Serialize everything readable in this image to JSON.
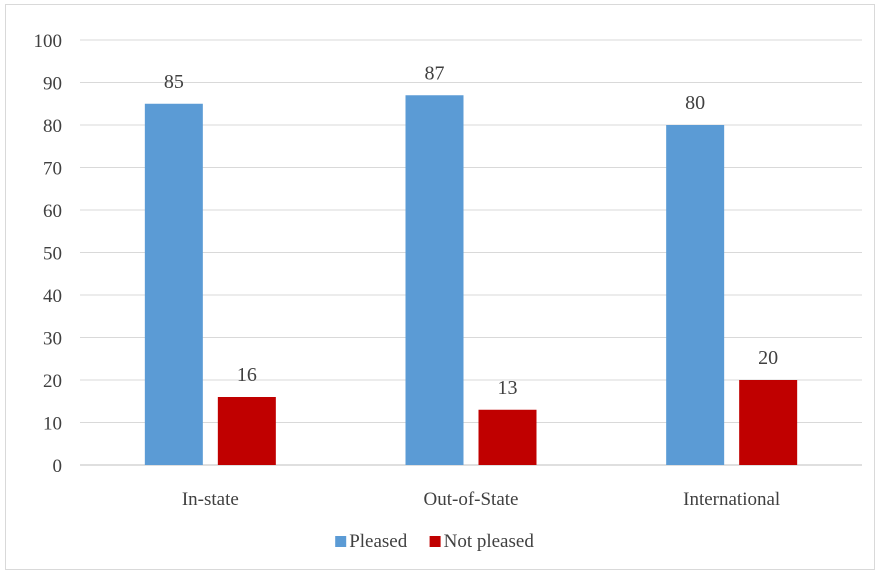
{
  "chart_data": {
    "type": "bar",
    "categories": [
      "In-state",
      "Out-of-State",
      "International"
    ],
    "series": [
      {
        "name": "Pleased",
        "values": [
          85,
          87,
          80
        ],
        "color": "#5b9bd5"
      },
      {
        "name": "Not pleased",
        "values": [
          16,
          13,
          20
        ],
        "color": "#c00000"
      }
    ],
    "ylim": [
      0,
      100
    ],
    "yticks": [
      0,
      10,
      20,
      30,
      40,
      50,
      60,
      70,
      80,
      90,
      100
    ],
    "grid": true,
    "legend": "bottom",
    "data_labels": true
  }
}
